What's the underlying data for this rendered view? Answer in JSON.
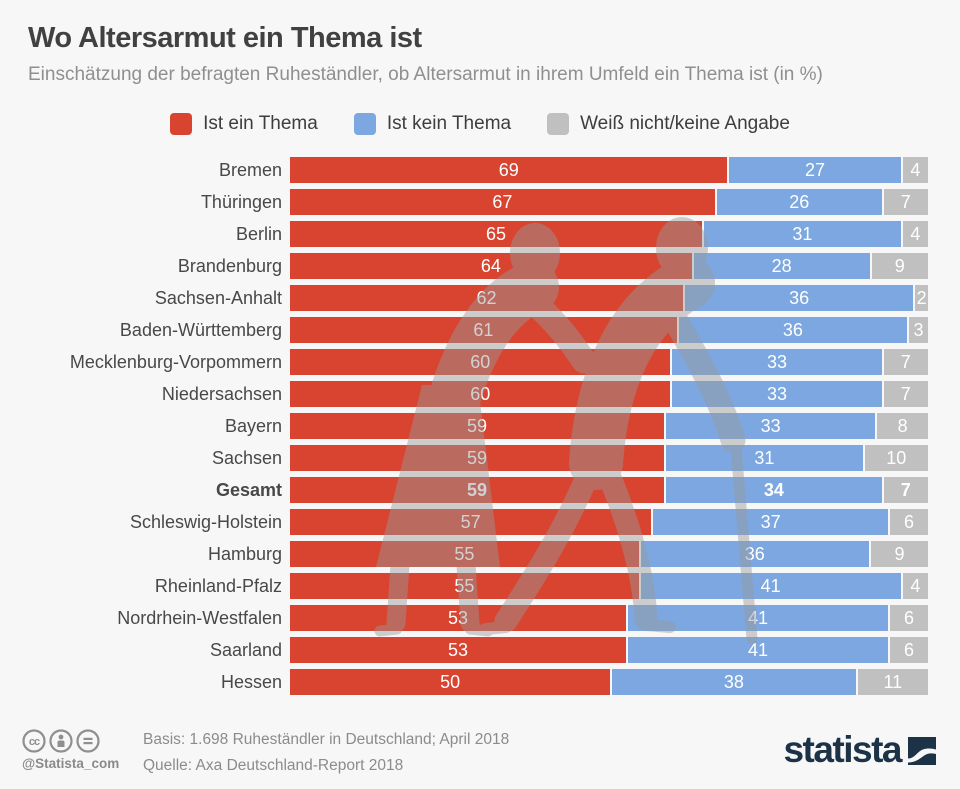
{
  "title": "Wo Altersarmut ein Thema ist",
  "subtitle": "Einschätzung der befragten Ruheständler, ob Altersarmut in ihrem Umfeld ein Thema ist (in %)",
  "colors": {
    "background": "#f7f7f8",
    "red": "#d8442f",
    "blue": "#7ca7e0",
    "gray": "#c1c0c0",
    "navy": "#1c3247",
    "watermark": "#9a9a9a"
  },
  "legend": [
    {
      "label": "Ist ein Thema",
      "color": "#d8442f"
    },
    {
      "label": "Ist kein Thema",
      "color": "#7ca7e0"
    },
    {
      "label": "Weiß nicht/keine Angabe",
      "color": "#c1c0c0"
    }
  ],
  "chart_data": {
    "type": "bar",
    "stacked": true,
    "orientation": "horizontal",
    "unit": "%",
    "value_labels": "inside-white",
    "highlight_category": "Gesamt",
    "categories": [
      "Bremen",
      "Thüringen",
      "Berlin",
      "Brandenburg",
      "Sachsen-Anhalt",
      "Baden-Württemberg",
      "Mecklenburg-Vorpommern",
      "Niedersachsen",
      "Bayern",
      "Sachsen",
      "Gesamt",
      "Schleswig-Holstein",
      "Hamburg",
      "Rheinland-Pfalz",
      "Nordrhein-Westfalen",
      "Saarland",
      "Hessen"
    ],
    "series": [
      {
        "name": "Ist ein Thema",
        "color": "#d8442f",
        "values": [
          69,
          67,
          65,
          64,
          62,
          61,
          60,
          60,
          59,
          59,
          59,
          57,
          55,
          55,
          53,
          53,
          50
        ]
      },
      {
        "name": "Ist kein Thema",
        "color": "#7ca7e0",
        "values": [
          27,
          26,
          31,
          28,
          36,
          36,
          33,
          33,
          33,
          31,
          34,
          37,
          36,
          41,
          41,
          41,
          38
        ]
      },
      {
        "name": "Weiß nicht/keine Angabe",
        "color": "#c1c0c0",
        "values": [
          4,
          7,
          4,
          9,
          2,
          3,
          7,
          7,
          8,
          10,
          7,
          6,
          9,
          4,
          6,
          6,
          11
        ]
      }
    ]
  },
  "watermark_icon": "elderly-couple-with-cane",
  "footer": {
    "license_icons": [
      "cc-icon",
      "attribution-icon",
      "no-derivatives-icon"
    ],
    "handle": "@Statista_com",
    "basis": "Basis: 1.698 Ruheständler in Deutschland; April 2018",
    "quelle": "Quelle: Axa Deutschland-Report 2018",
    "logo_text": "statista"
  }
}
